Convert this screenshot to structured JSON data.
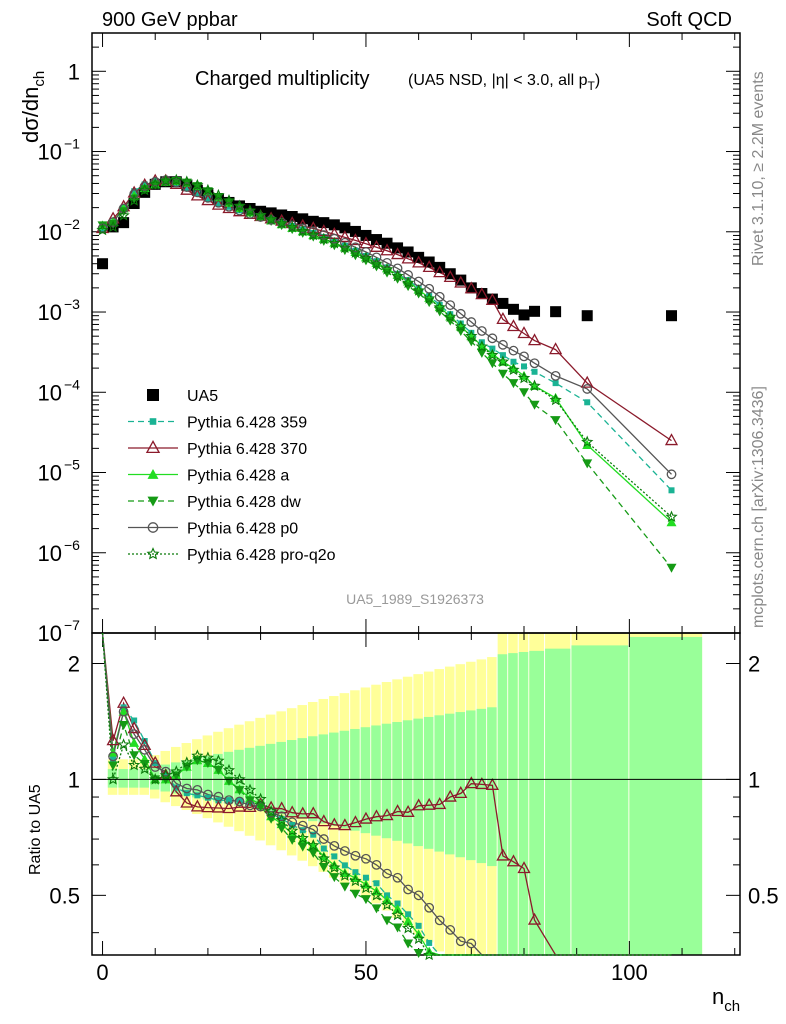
{
  "header": {
    "left": "900 GeV ppbar",
    "right": "Soft QCD"
  },
  "side_labels": {
    "rivet": "Rivet 3.1.10, ≥ 2.2M events",
    "mcplots": "mcplots.cern.ch [arXiv:1306.3436]"
  },
  "plot_title": {
    "main": "Charged multiplicity",
    "detail_prefix": "(UA5 NSD, |η| < 3.0, all p",
    "detail_sub": "T",
    "detail_suffix": ")"
  },
  "analysis_id": "UA5_1989_S1926373",
  "axes": {
    "x_label_main": "n",
    "x_label_sub": "ch",
    "y_label_main": "dσ/dn",
    "y_label_sub": "ch",
    "ratio_label": "Ratio to UA5",
    "x_ticks": [
      "0",
      "50",
      "100"
    ],
    "y_ticks": [
      {
        "base": "1",
        "exp": ""
      },
      {
        "base": "10",
        "exp": "−1"
      },
      {
        "base": "10",
        "exp": "−2"
      },
      {
        "base": "10",
        "exp": "−3"
      },
      {
        "base": "10",
        "exp": "−4"
      },
      {
        "base": "10",
        "exp": "−5"
      },
      {
        "base": "10",
        "exp": "−6"
      },
      {
        "base": "10",
        "exp": "−7"
      }
    ],
    "ratio_ticks": [
      "2",
      "1",
      "0.5"
    ]
  },
  "colors": {
    "ua5": "#000000",
    "p359": "#1ab394",
    "p370": "#8b1a2b",
    "pa": "#22dd22",
    "pdw": "#159a15",
    "pp0": "#555555",
    "pq2o": "#0b7a0b",
    "band_outer": "#ffff99",
    "band_inner": "#99ff99"
  },
  "chart_data": {
    "type": "scatter",
    "x_range": [
      -2,
      121
    ],
    "y_range": [
      1e-07,
      3
    ],
    "y_scale": "log",
    "ratio_range": [
      0.35,
      2.4
    ],
    "ratio_scale": "log",
    "series": [
      {
        "name": "UA5",
        "x": [
          0,
          2,
          4,
          6,
          8,
          10,
          12,
          14,
          16,
          18,
          20,
          22,
          24,
          26,
          28,
          30,
          32,
          34,
          36,
          38,
          40,
          42,
          44,
          46,
          48,
          50,
          52,
          54,
          56,
          58,
          60,
          62,
          64,
          66,
          68,
          70,
          72,
          74,
          76,
          78,
          80,
          82,
          86,
          92,
          108
        ],
        "y": [
          0.004,
          0.0115,
          0.013,
          0.0225,
          0.031,
          0.039,
          0.042,
          0.042,
          0.038,
          0.033,
          0.029,
          0.0255,
          0.0232,
          0.021,
          0.0195,
          0.018,
          0.0172,
          0.0162,
          0.0155,
          0.0145,
          0.0135,
          0.013,
          0.0122,
          0.0112,
          0.0101,
          0.009,
          0.008,
          0.0072,
          0.0063,
          0.0056,
          0.0048,
          0.0042,
          0.0036,
          0.003,
          0.0025,
          0.002,
          0.0017,
          0.00145,
          0.00128,
          0.00108,
          0.00092,
          0.00102,
          0.00101,
          0.0009,
          0.0009
        ]
      },
      {
        "name": "Pythia 6.428 359",
        "x": [
          0,
          2,
          4,
          6,
          8,
          10,
          12,
          14,
          16,
          18,
          20,
          22,
          24,
          26,
          28,
          30,
          32,
          34,
          36,
          38,
          40,
          42,
          44,
          46,
          48,
          50,
          52,
          54,
          56,
          58,
          60,
          62,
          64,
          66,
          68,
          70,
          72,
          74,
          76,
          78,
          80,
          82,
          86,
          92,
          108
        ],
        "y": [
          0.011,
          0.013,
          0.02,
          0.032,
          0.039,
          0.043,
          0.043,
          0.04,
          0.035,
          0.03,
          0.026,
          0.0225,
          0.0205,
          0.0185,
          0.017,
          0.0155,
          0.014,
          0.0128,
          0.0118,
          0.0107,
          0.0097,
          0.0086,
          0.0077,
          0.0067,
          0.0058,
          0.005,
          0.0043,
          0.0036,
          0.003,
          0.0025,
          0.002,
          0.00158,
          0.00123,
          0.00094,
          0.00072,
          0.00055,
          0.00042,
          0.00035,
          0.00029,
          0.00024,
          0.00021,
          0.00018,
          0.00013,
          7.5e-05,
          6e-06
        ]
      },
      {
        "name": "Pythia 6.428 370",
        "x": [
          0,
          2,
          4,
          6,
          8,
          10,
          12,
          14,
          16,
          18,
          20,
          22,
          24,
          26,
          28,
          30,
          32,
          34,
          36,
          38,
          40,
          42,
          44,
          46,
          48,
          50,
          52,
          54,
          56,
          58,
          60,
          62,
          64,
          66,
          68,
          70,
          72,
          74,
          76,
          78,
          80,
          82,
          86,
          92,
          108
        ],
        "y": [
          0.011,
          0.0145,
          0.0205,
          0.0305,
          0.038,
          0.043,
          0.043,
          0.039,
          0.033,
          0.028,
          0.0245,
          0.0215,
          0.0195,
          0.0178,
          0.0165,
          0.0155,
          0.0145,
          0.0136,
          0.0127,
          0.0118,
          0.011,
          0.0101,
          0.0093,
          0.0085,
          0.0078,
          0.0071,
          0.0064,
          0.0058,
          0.0052,
          0.0046,
          0.0041,
          0.0036,
          0.0031,
          0.0027,
          0.0023,
          0.00195,
          0.00165,
          0.0014,
          0.00081,
          0.00066,
          0.00054,
          0.00044,
          0.00034,
          0.00013,
          2.5e-05
        ]
      },
      {
        "name": "Pythia 6.428 a",
        "x": [
          0,
          2,
          4,
          6,
          8,
          10,
          12,
          14,
          16,
          18,
          20,
          22,
          24,
          26,
          28,
          30,
          32,
          34,
          36,
          38,
          40,
          42,
          44,
          46,
          48,
          50,
          52,
          54,
          56,
          58,
          60,
          62,
          64,
          66,
          68,
          70,
          72,
          74,
          76,
          78,
          80,
          82,
          86,
          92,
          108
        ],
        "y": [
          0.012,
          0.0135,
          0.0195,
          0.028,
          0.035,
          0.039,
          0.042,
          0.043,
          0.041,
          0.037,
          0.032,
          0.027,
          0.023,
          0.0198,
          0.0174,
          0.0155,
          0.0138,
          0.0124,
          0.0112,
          0.0101,
          0.0091,
          0.0082,
          0.0073,
          0.0064,
          0.0056,
          0.0048,
          0.0041,
          0.0035,
          0.0029,
          0.0024,
          0.0019,
          0.0015,
          0.00115,
          0.00088,
          0.00066,
          0.0005,
          0.00038,
          0.0003,
          0.00024,
          0.0002,
          0.00016,
          0.00012,
          8.5e-05,
          2.2e-05,
          2.4e-06
        ]
      },
      {
        "name": "Pythia 6.428 dw",
        "x": [
          0,
          2,
          4,
          6,
          8,
          10,
          12,
          14,
          16,
          18,
          20,
          22,
          24,
          26,
          28,
          30,
          32,
          34,
          36,
          38,
          40,
          42,
          44,
          46,
          48,
          50,
          52,
          54,
          56,
          58,
          60,
          62,
          64,
          66,
          68,
          70,
          72,
          74,
          76,
          78,
          80,
          82,
          86,
          92,
          108
        ],
        "y": [
          0.012,
          0.0125,
          0.018,
          0.026,
          0.034,
          0.039,
          0.042,
          0.043,
          0.041,
          0.037,
          0.032,
          0.027,
          0.023,
          0.0197,
          0.0172,
          0.0153,
          0.0136,
          0.0121,
          0.0108,
          0.0097,
          0.0087,
          0.0077,
          0.0068,
          0.0059,
          0.0051,
          0.0044,
          0.0037,
          0.0031,
          0.0026,
          0.0021,
          0.0017,
          0.00133,
          0.00102,
          0.00078,
          0.00058,
          0.00043,
          0.00031,
          0.00023,
          0.00017,
          0.00013,
          0.0001,
          7e-05,
          4.5e-05,
          1.3e-05,
          6.5e-07
        ]
      },
      {
        "name": "Pythia 6.428 p0",
        "x": [
          0,
          2,
          4,
          6,
          8,
          10,
          12,
          14,
          16,
          18,
          20,
          22,
          24,
          26,
          28,
          30,
          32,
          34,
          36,
          38,
          40,
          42,
          44,
          46,
          48,
          50,
          52,
          54,
          56,
          58,
          60,
          62,
          64,
          66,
          68,
          70,
          72,
          74,
          76,
          78,
          80,
          82,
          86,
          92,
          108
        ],
        "y": [
          0.011,
          0.0132,
          0.0195,
          0.0295,
          0.037,
          0.042,
          0.044,
          0.041,
          0.036,
          0.031,
          0.0265,
          0.023,
          0.0205,
          0.0184,
          0.0167,
          0.0153,
          0.0141,
          0.013,
          0.012,
          0.011,
          0.01,
          0.0091,
          0.0082,
          0.0073,
          0.0064,
          0.0056,
          0.0048,
          0.0041,
          0.0035,
          0.0029,
          0.0024,
          0.00195,
          0.00155,
          0.00122,
          0.00095,
          0.00075,
          0.00058,
          0.00047,
          0.00039,
          0.00033,
          0.00028,
          0.00023,
          0.00016,
          0.00011,
          9.5e-06
        ]
      },
      {
        "name": "Pythia 6.428 pro-q2o",
        "x": [
          0,
          2,
          4,
          6,
          8,
          10,
          12,
          14,
          16,
          18,
          20,
          22,
          24,
          26,
          28,
          30,
          32,
          34,
          36,
          38,
          40,
          42,
          44,
          46,
          48,
          50,
          52,
          54,
          56,
          58,
          60,
          62,
          64,
          66,
          68,
          70,
          72,
          74,
          76,
          78,
          80,
          82,
          86,
          92,
          108
        ],
        "y": [
          0.0105,
          0.0115,
          0.016,
          0.0245,
          0.033,
          0.039,
          0.043,
          0.044,
          0.042,
          0.038,
          0.033,
          0.0285,
          0.0245,
          0.021,
          0.0183,
          0.016,
          0.0142,
          0.0127,
          0.0114,
          0.0102,
          0.0091,
          0.0081,
          0.0072,
          0.0063,
          0.0055,
          0.0047,
          0.004,
          0.0034,
          0.0028,
          0.0023,
          0.00185,
          0.00147,
          0.00114,
          0.00087,
          0.00066,
          0.0005,
          0.00037,
          0.00029,
          0.00024,
          0.00019,
          0.00015,
          0.00012,
          8e-05,
          2.4e-05,
          2.8e-06
        ]
      }
    ],
    "legend_position": "lower-left"
  }
}
